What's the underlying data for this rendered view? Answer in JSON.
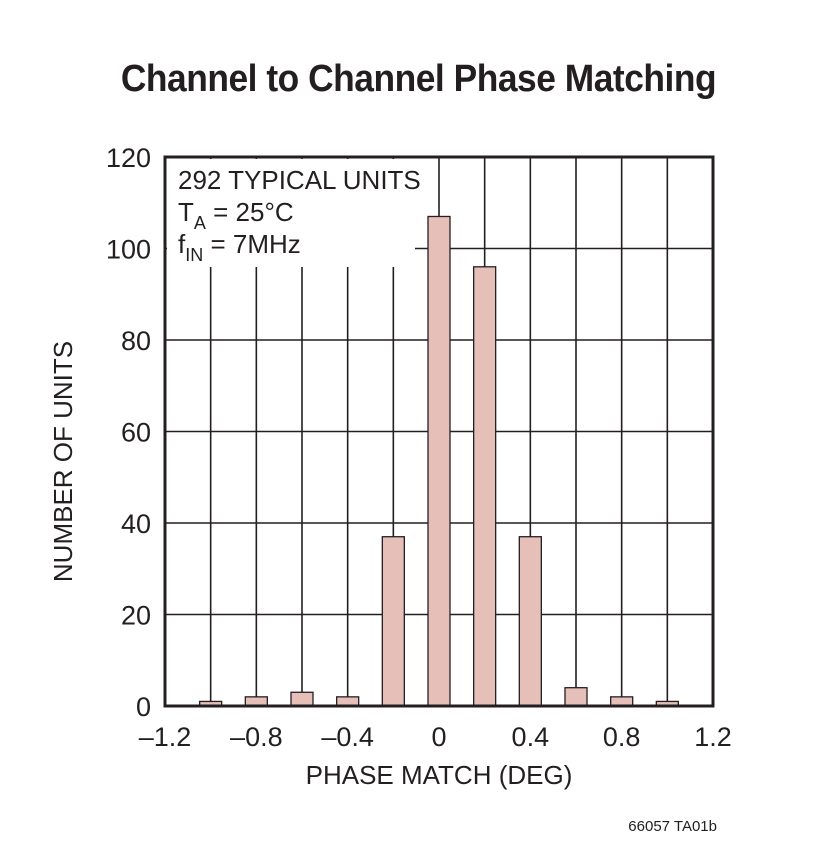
{
  "title": "Channel to Channel Phase Matching",
  "figure_id": "66057 TA01b",
  "chart_data": {
    "type": "bar",
    "xlabel": "PHASE MATCH (DEG)",
    "ylabel": "NUMBER OF UNITS",
    "xlim": [
      -1.2,
      1.2
    ],
    "ylim": [
      0,
      120
    ],
    "x_ticks": [
      "–1.2",
      "–0.8",
      "–0.4",
      "0",
      "0.4",
      "0.8",
      "1.2"
    ],
    "y_ticks": [
      "0",
      "20",
      "40",
      "60",
      "80",
      "100",
      "120"
    ],
    "grid": true,
    "bar_color": "#e6bfb9",
    "annotation": {
      "line1": "292 TYPICAL UNITS",
      "line2_main": "T",
      "line2_sub": "A",
      "line2_rest": " = 25°C",
      "line3_main": "f",
      "line3_sub": "IN",
      "line3_rest": " = 7MHz"
    },
    "x": [
      -1.0,
      -0.8,
      -0.6,
      -0.4,
      -0.2,
      0.0,
      0.2,
      0.4,
      0.6,
      0.8,
      1.0
    ],
    "values": [
      1,
      2,
      3,
      2,
      37,
      107,
      96,
      37,
      4,
      2,
      1
    ]
  }
}
